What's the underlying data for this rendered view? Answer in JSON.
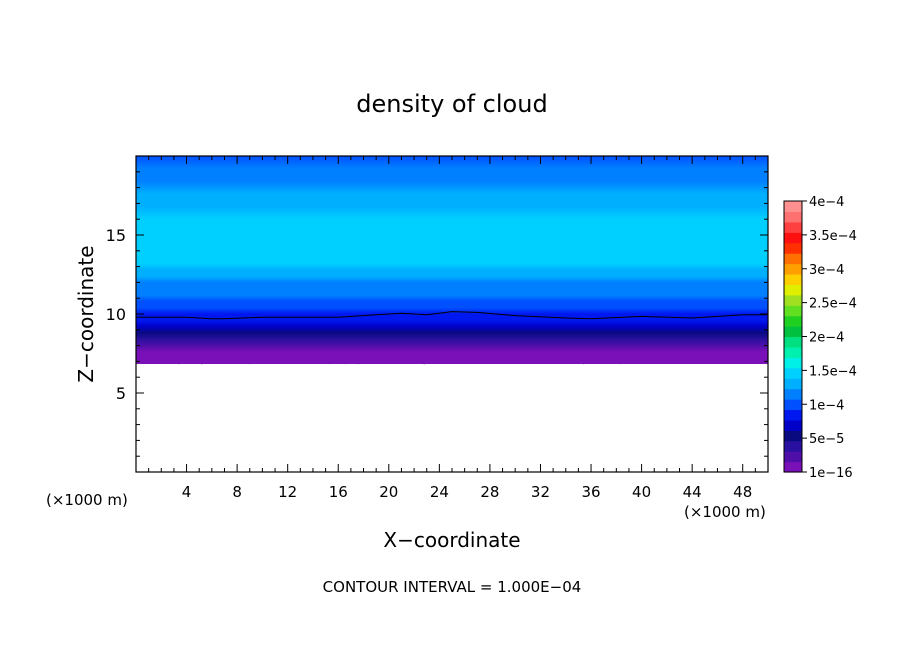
{
  "chart_data": {
    "type": "heatmap",
    "title": "density of cloud",
    "xlabel": "X−coordinate",
    "ylabel": "Z−coordinate",
    "x_unit": "(×1000 m)",
    "y_unit": "(×1000 m)",
    "xlim": [
      0,
      50
    ],
    "ylim": [
      0,
      20
    ],
    "x_ticks": [
      4,
      8,
      12,
      16,
      20,
      24,
      28,
      32,
      36,
      40,
      44,
      48
    ],
    "y_ticks": [
      5,
      10,
      15
    ],
    "footer": "CONTOUR INTERVAL = 1.000E−04",
    "colorbar": {
      "labels": [
        "1e−16",
        "5e−5",
        "1e−4",
        "1.5e−4",
        "2e−4",
        "2.5e−4",
        "3e−4",
        "3.5e−4",
        "4e−4"
      ],
      "label_values": [
        0,
        5e-05,
        0.0001,
        0.00015,
        0.0002,
        0.00025,
        0.0003,
        0.00035,
        0.0004
      ],
      "range": [
        0,
        0.0004
      ],
      "colors": [
        "#7a10b8",
        "#4f0ea8",
        "#2a10a0",
        "#0a0a80",
        "#0000c8",
        "#0018f0",
        "#0050ff",
        "#0080ff",
        "#00b0ff",
        "#00d0ff",
        "#00f0e8",
        "#00f0b0",
        "#00e080",
        "#00c040",
        "#20d020",
        "#60e020",
        "#a0e020",
        "#e0ee00",
        "#ffd000",
        "#ffa000",
        "#ff7000",
        "#ff3000",
        "#ff1010",
        "#ff4040",
        "#ff7070",
        "#ff9090"
      ]
    },
    "profile": {
      "z": [
        7.2,
        7.6,
        8.0,
        8.4,
        8.8,
        9.2,
        9.6,
        10.0,
        10.4,
        10.8,
        11.2,
        11.6,
        12.0,
        12.4,
        12.8,
        13.2,
        14.0,
        15.0,
        16.0,
        16.8,
        17.6,
        18.4,
        19.2,
        20.0
      ],
      "density": [
        1e-06,
        1e-05,
        2.5e-05,
        4e-05,
        5.5e-05,
        6.8e-05,
        7.8e-05,
        8.6e-05,
        9.4e-05,
        0.000101,
        0.000108,
        0.000115,
        0.000122,
        0.000128,
        0.000134,
        0.00014,
        0.000146,
        0.00015,
        0.000146,
        0.000136,
        0.000126,
        0.000116,
        0.000108,
        0.0001
      ]
    },
    "cloud_base_z": 7.0,
    "contour_line": {
      "level": 0.0001,
      "x": [
        0,
        4,
        6,
        7,
        10,
        16,
        20,
        21,
        23,
        25,
        27,
        30,
        34,
        36,
        40,
        44,
        48,
        50
      ],
      "z": [
        9.8,
        9.8,
        9.7,
        9.7,
        9.8,
        9.8,
        10.0,
        10.05,
        9.95,
        10.15,
        10.1,
        9.9,
        9.75,
        9.7,
        9.85,
        9.75,
        9.95,
        9.95
      ]
    }
  }
}
